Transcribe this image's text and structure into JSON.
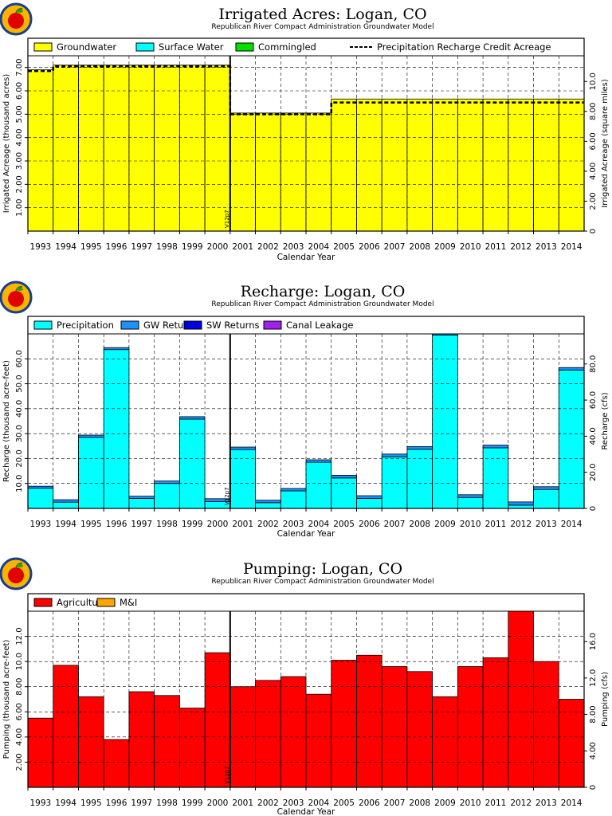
{
  "panels": {
    "acres": {
      "title": "Irrigated Acres: Logan, CO",
      "subtitle": "Republican River Compact Administration Groundwater Model",
      "ylabel_left": "Irrigated Acreage (thousand acres)",
      "ylabel_right": "Irrigated Acreage (square miles)",
      "xlabel": "Calendar Year",
      "legend": [
        "Groundwater",
        "Surface Water",
        "Commingled",
        "Precipitation Recharge Credit Acreage"
      ],
      "marker": "V12p7"
    },
    "recharge": {
      "title": "Recharge: Logan, CO",
      "subtitle": "Republican River Compact Administration Groundwater Model",
      "ylabel_left": "Recharge (thousand acre-feet)",
      "ylabel_right": "Recharge (cfs)",
      "xlabel": "Calendar Year",
      "legend": [
        "Precipitation",
        "GW Returns",
        "SW Returns",
        "Canal Leakage"
      ],
      "marker": "V12p7"
    },
    "pumping": {
      "title": "Pumping: Logan, CO",
      "subtitle": "Republican River Compact Administration Groundwater Model",
      "ylabel_left": "Pumping (thousand acre-feet)",
      "ylabel_right": "Pumping (cfs)",
      "xlabel": "Calendar Year",
      "legend": [
        "Agricultural",
        "M&I"
      ],
      "marker": "V12p7"
    }
  },
  "colors": {
    "groundwater": "#ffff00",
    "surface_water": "#00ffff",
    "commingled": "#00e000",
    "precipitation": "#00ffff",
    "gw_returns": "#1e90ff",
    "sw_returns": "#0000e0",
    "canal_leakage": "#a020f0",
    "agricultural": "#ff0000",
    "mi": "#ffa500"
  },
  "chart_data": [
    {
      "type": "bar",
      "title": "Irrigated Acres: Logan, CO",
      "subtitle": "Republican River Compact Administration Groundwater Model",
      "xlabel": "Calendar Year",
      "ylabel": "Irrigated Acreage (thousand acres)",
      "y2label": "Irrigated Acreage (square miles)",
      "categories": [
        "1993",
        "1994",
        "1995",
        "1996",
        "1997",
        "1998",
        "1999",
        "2000",
        "2001",
        "2002",
        "2003",
        "2004",
        "2005",
        "2006",
        "2007",
        "2008",
        "2009",
        "2010",
        "2011",
        "2012",
        "2013",
        "2014"
      ],
      "ylim": [
        0,
        7.5
      ],
      "yticks": [
        "1.00",
        "2.00",
        "3.00",
        "4.00",
        "5.00",
        "6.00",
        "7.00"
      ],
      "y2ticks": [
        "0",
        "2.00",
        "4.00",
        "6.00",
        "8.00",
        "10.0"
      ],
      "y2_per_y": 1.5625,
      "grid": true,
      "legend_position": "top",
      "series": [
        {
          "name": "Groundwater",
          "values": [
            6.9,
            7.1,
            7.1,
            7.1,
            7.1,
            7.1,
            7.1,
            7.1,
            5.05,
            5.05,
            5.05,
            5.05,
            5.65,
            5.65,
            5.65,
            5.65,
            5.65,
            5.65,
            5.65,
            5.65,
            5.65,
            5.65
          ]
        },
        {
          "name": "Surface Water",
          "values": [
            0,
            0,
            0,
            0,
            0,
            0,
            0,
            0,
            0,
            0,
            0,
            0,
            0,
            0,
            0,
            0,
            0,
            0,
            0,
            0,
            0,
            0
          ]
        },
        {
          "name": "Commingled",
          "values": [
            0,
            0,
            0,
            0,
            0,
            0,
            0,
            0,
            0,
            0,
            0,
            0,
            0,
            0,
            0,
            0,
            0,
            0,
            0,
            0,
            0,
            0
          ]
        }
      ],
      "line": {
        "name": "Precipitation Recharge Credit Acreage",
        "values": [
          6.85,
          7.05,
          7.05,
          7.05,
          7.05,
          7.05,
          7.05,
          7.05,
          5.0,
          5.0,
          5.0,
          5.0,
          5.5,
          5.5,
          5.5,
          5.5,
          5.5,
          5.5,
          5.5,
          5.5,
          5.5,
          5.5
        ]
      }
    },
    {
      "type": "bar",
      "title": "Recharge: Logan, CO",
      "subtitle": "Republican River Compact Administration Groundwater Model",
      "xlabel": "Calendar Year",
      "ylabel": "Recharge (thousand acre-feet)",
      "y2label": "Recharge (cfs)",
      "categories": [
        "1993",
        "1994",
        "1995",
        "1996",
        "1997",
        "1998",
        "1999",
        "2000",
        "2001",
        "2002",
        "2003",
        "2004",
        "2005",
        "2006",
        "2007",
        "2008",
        "2009",
        "2010",
        "2011",
        "2012",
        "2013",
        "2014"
      ],
      "ylim": [
        0,
        70
      ],
      "yticks": [
        "10.0",
        "20.0",
        "30.0",
        "40.0",
        "50.0",
        "60.0"
      ],
      "y2ticks": [
        "0",
        "20.0",
        "40.0",
        "60.0",
        "80.0"
      ],
      "y2_per_y": 1.381,
      "grid": true,
      "legend_position": "top",
      "series": [
        {
          "name": "Precipitation",
          "values": [
            8.1,
            2.5,
            28.5,
            63.7,
            4.0,
            10.0,
            35.8,
            2.7,
            23.6,
            2.3,
            7.0,
            18.5,
            12.2,
            4.0,
            20.7,
            23.7,
            69.5,
            4.4,
            24.3,
            1.3,
            7.6,
            55.5
          ]
        },
        {
          "name": "GW Returns",
          "values": [
            0.8,
            1.0,
            0.9,
            0.8,
            0.9,
            1.0,
            1.0,
            1.2,
            1.0,
            1.0,
            1.0,
            1.0,
            1.1,
            1.1,
            1.1,
            1.1,
            1.0,
            1.1,
            1.1,
            1.3,
            1.1,
            1.0
          ]
        },
        {
          "name": "SW Returns",
          "values": [
            0,
            0,
            0,
            0,
            0,
            0,
            0,
            0,
            0,
            0,
            0,
            0,
            0,
            0,
            0,
            0,
            0,
            0,
            0,
            0,
            0,
            0
          ]
        },
        {
          "name": "Canal Leakage",
          "values": [
            0,
            0,
            0,
            0,
            0,
            0,
            0,
            0,
            0,
            0,
            0,
            0,
            0,
            0,
            0,
            0,
            0,
            0,
            0,
            0,
            0,
            0
          ]
        }
      ]
    },
    {
      "type": "bar",
      "title": "Pumping: Logan, CO",
      "subtitle": "Republican River Compact Administration Groundwater Model",
      "xlabel": "Calendar Year",
      "ylabel": "Pumping (thousand acre-feet)",
      "y2label": "Pumping (cfs)",
      "categories": [
        "1993",
        "1994",
        "1995",
        "1996",
        "1997",
        "1998",
        "1999",
        "2000",
        "2001",
        "2002",
        "2003",
        "2004",
        "2005",
        "2006",
        "2007",
        "2008",
        "2009",
        "2010",
        "2011",
        "2012",
        "2013",
        "2014"
      ],
      "ylim": [
        0,
        14
      ],
      "yticks": [
        "2.00",
        "4.00",
        "6.00",
        "8.00",
        "10.0",
        "12.0"
      ],
      "y2ticks": [
        "0",
        "4.00",
        "8.00",
        "12.0",
        "16.0"
      ],
      "y2_per_y": 1.381,
      "grid": true,
      "legend_position": "top",
      "series": [
        {
          "name": "Agricultural",
          "values": [
            5.5,
            9.7,
            7.2,
            3.8,
            7.6,
            7.3,
            6.3,
            10.7,
            8.0,
            8.5,
            8.8,
            7.4,
            10.1,
            10.5,
            9.6,
            9.2,
            7.2,
            9.6,
            10.3,
            14.1,
            10.0,
            7.0
          ]
        },
        {
          "name": "M&I",
          "values": [
            0,
            0,
            0,
            0,
            0,
            0,
            0,
            0,
            0,
            0,
            0,
            0,
            0,
            0,
            0,
            0,
            0,
            0,
            0,
            0,
            0,
            0
          ]
        }
      ]
    }
  ]
}
